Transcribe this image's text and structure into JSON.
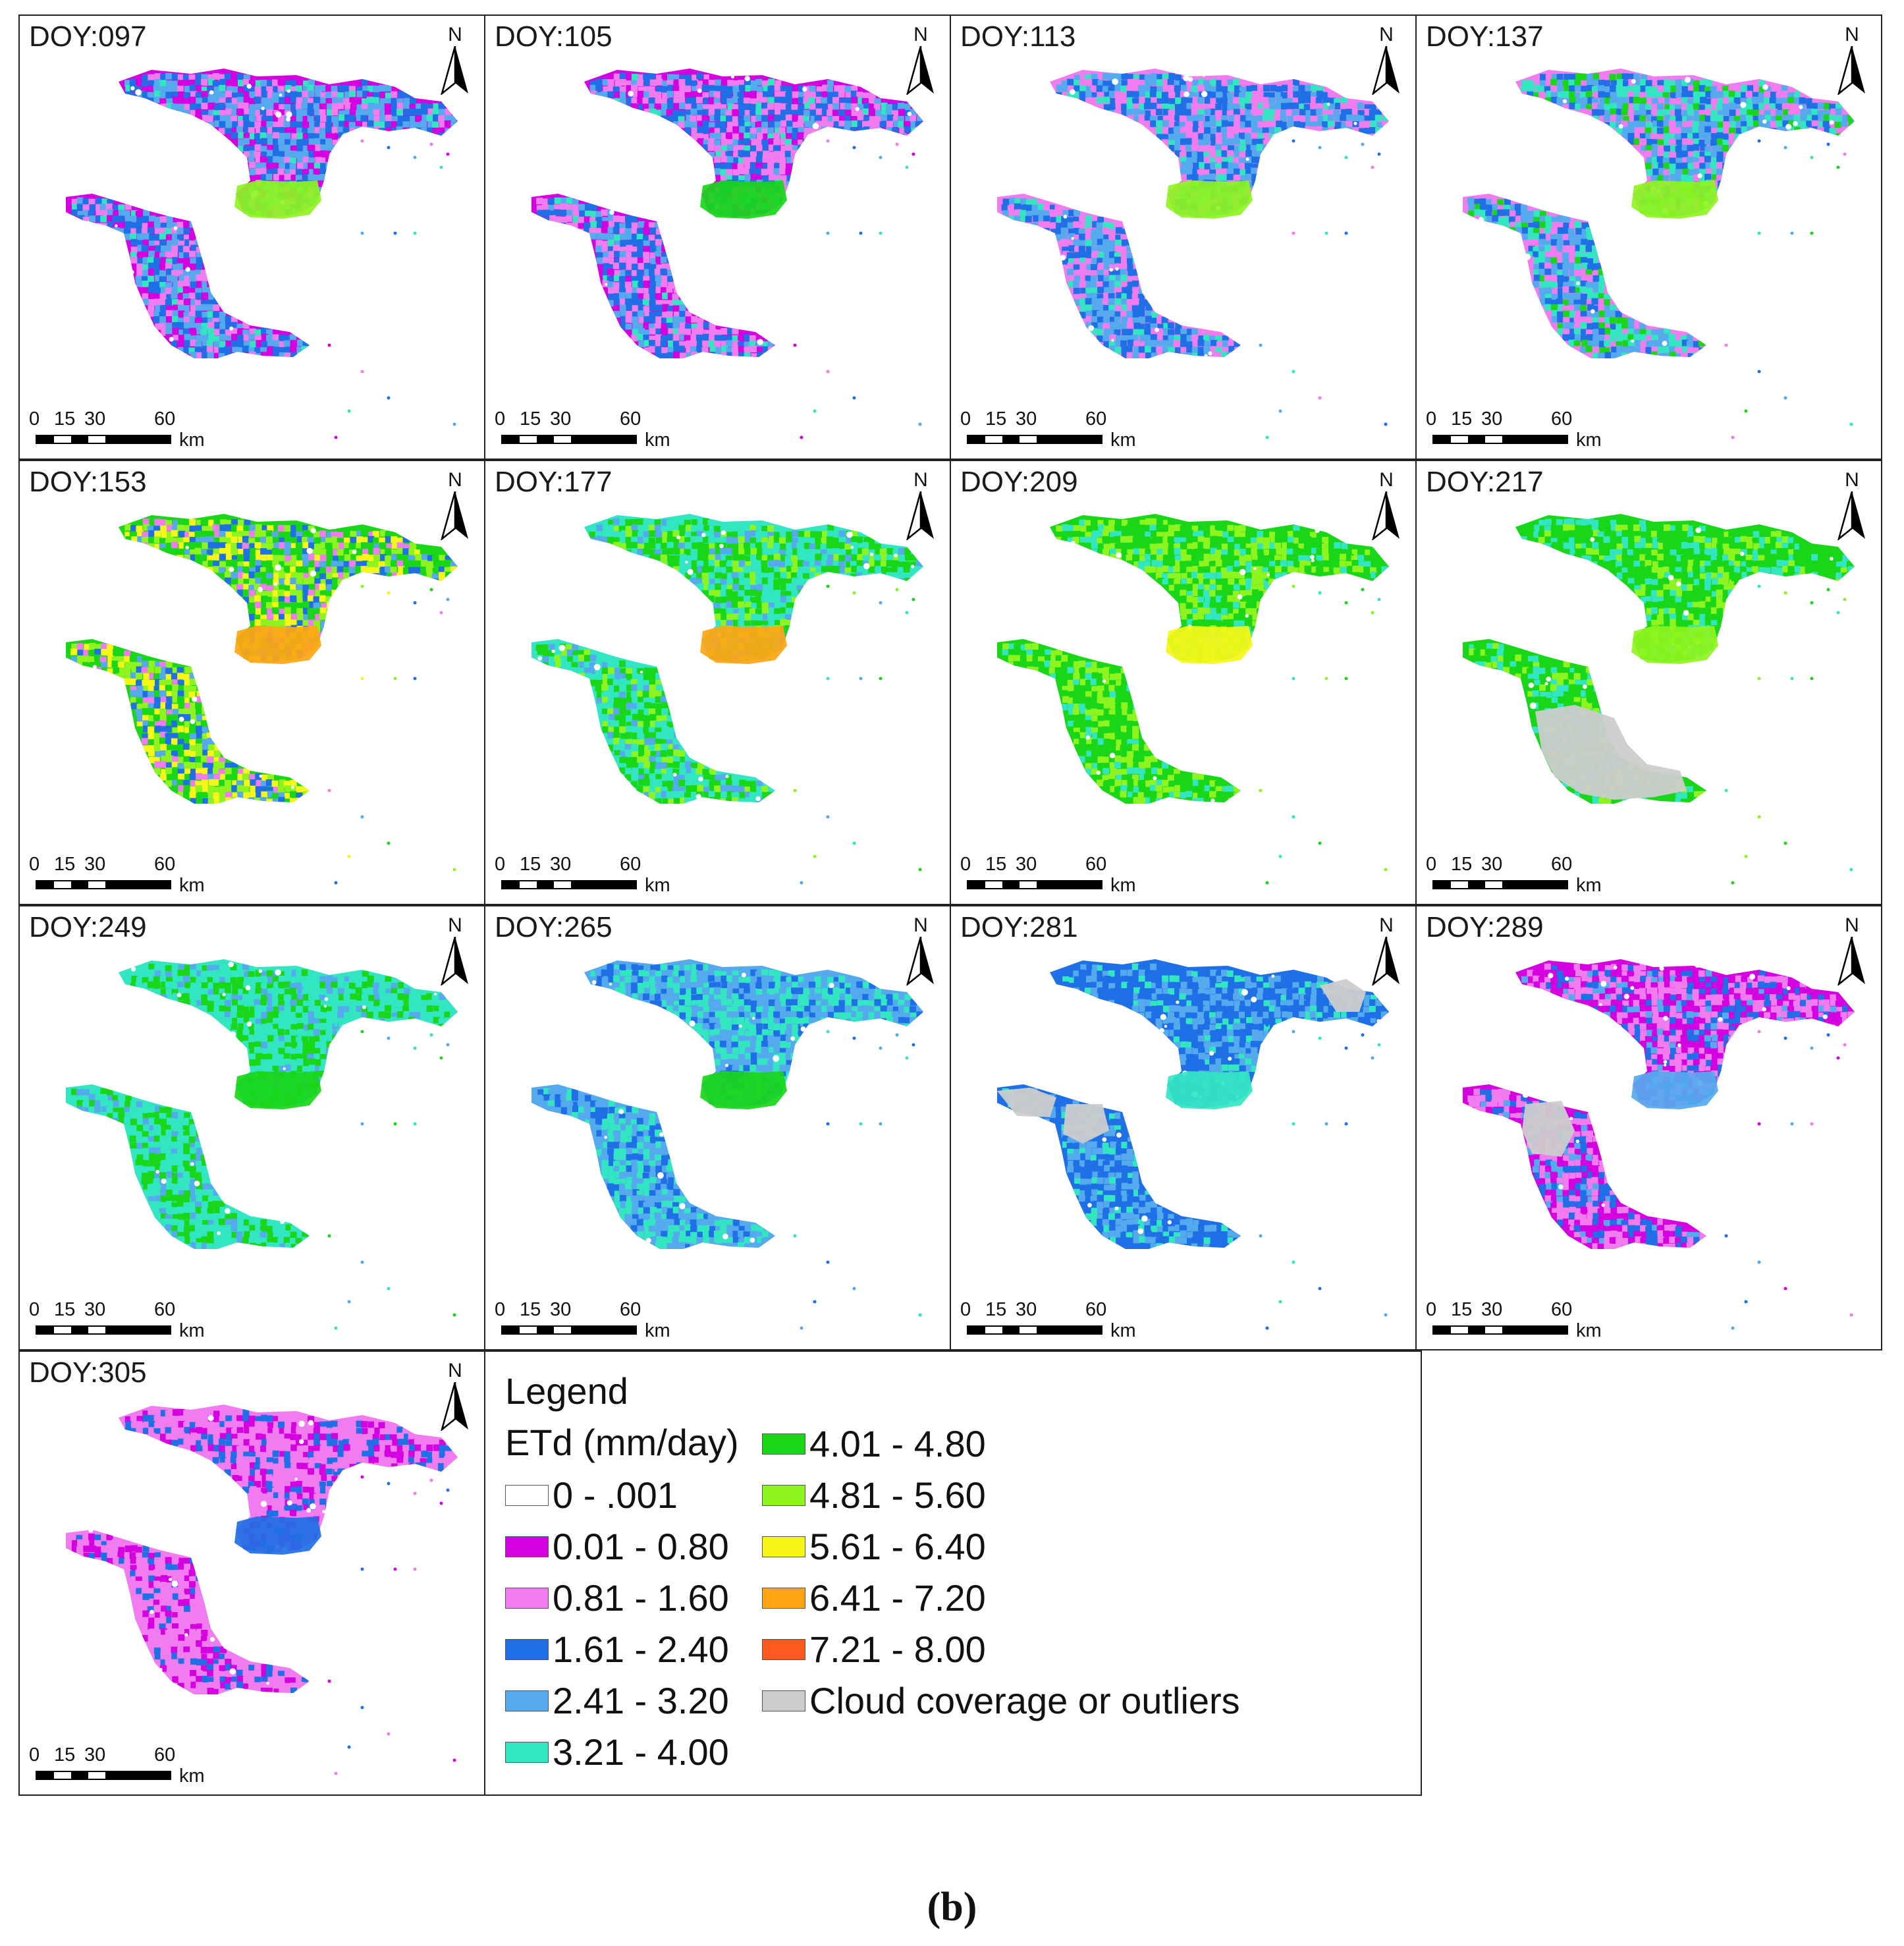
{
  "figure": {
    "caption": "(b)",
    "panels": [
      {
        "label": "DOY:097",
        "classes": [
          "c2",
          "c3",
          "c4",
          "c5",
          "c6"
        ],
        "weights": [
          4,
          5,
          8,
          8,
          2
        ],
        "hotspot": "c8",
        "cloud": "none"
      },
      {
        "label": "DOY:105",
        "classes": [
          "c2",
          "c3",
          "c4",
          "c5",
          "c6"
        ],
        "weights": [
          3,
          9,
          8,
          5,
          2
        ],
        "hotspot": "c7",
        "cloud": "none"
      },
      {
        "label": "DOY:113",
        "classes": [
          "c3",
          "c4",
          "c5",
          "c6"
        ],
        "weights": [
          6,
          8,
          8,
          3
        ],
        "hotspot": "c8",
        "cloud": "none"
      },
      {
        "label": "DOY:137",
        "classes": [
          "c3",
          "c4",
          "c5",
          "c6",
          "c7"
        ],
        "weights": [
          5,
          6,
          7,
          6,
          4
        ],
        "hotspot": "c8",
        "cloud": "none"
      },
      {
        "label": "DOY:153",
        "classes": [
          "c7",
          "c8",
          "c9",
          "c4",
          "c3",
          "c5"
        ],
        "weights": [
          5,
          6,
          4,
          3,
          2,
          2
        ],
        "hotspot": "c10",
        "cloud": "none"
      },
      {
        "label": "DOY:177",
        "classes": [
          "c6",
          "c7",
          "c8",
          "c5"
        ],
        "weights": [
          7,
          7,
          3,
          3
        ],
        "hotspot": "c10",
        "cloud": "none"
      },
      {
        "label": "DOY:209",
        "classes": [
          "c7",
          "c8",
          "c6"
        ],
        "weights": [
          9,
          6,
          3
        ],
        "hotspot": "c9",
        "cloud": "none"
      },
      {
        "label": "DOY:217",
        "classes": [
          "c7",
          "c6",
          "c8"
        ],
        "weights": [
          9,
          4,
          3
        ],
        "hotspot": "c8",
        "cloud": "south"
      },
      {
        "label": "DOY:249",
        "classes": [
          "c6",
          "c7",
          "c5"
        ],
        "weights": [
          9,
          5,
          3
        ],
        "hotspot": "c7",
        "cloud": "none"
      },
      {
        "label": "DOY:265",
        "classes": [
          "c5",
          "c6",
          "c4"
        ],
        "weights": [
          7,
          7,
          4
        ],
        "hotspot": "c7",
        "cloud": "none"
      },
      {
        "label": "DOY:281",
        "classes": [
          "c4",
          "c5",
          "c6"
        ],
        "weights": [
          8,
          5,
          2
        ],
        "hotspot": "c6",
        "cloud": "patches"
      },
      {
        "label": "DOY:289",
        "classes": [
          "c2",
          "c3",
          "c4",
          "c5"
        ],
        "weights": [
          7,
          7,
          4,
          2
        ],
        "hotspot": "c5",
        "cloud": "center"
      },
      {
        "label": "DOY:305",
        "classes": [
          "c3",
          "c2",
          "c4"
        ],
        "weights": [
          9,
          3,
          3
        ],
        "hotspot": "c4",
        "cloud": "none"
      }
    ],
    "north_label": "N",
    "scale": {
      "ticks": [
        "0",
        "15",
        "30",
        "60"
      ],
      "unit": "km"
    }
  },
  "legend": {
    "title": "Legend",
    "subtitle": "ETd (mm/day)",
    "items": [
      {
        "id": "c1",
        "label": "0 - .001",
        "color": "#ffffff"
      },
      {
        "id": "c2",
        "label": "0.01 - 0.80",
        "color": "#d400e0"
      },
      {
        "id": "c3",
        "label": "0.81 - 1.60",
        "color": "#f07cf0"
      },
      {
        "id": "c4",
        "label": "1.61 - 2.40",
        "color": "#1f6fe6"
      },
      {
        "id": "c5",
        "label": "2.41 - 3.20",
        "color": "#55aaee"
      },
      {
        "id": "c6",
        "label": "3.21 - 4.00",
        "color": "#33e6c2"
      },
      {
        "id": "c7",
        "label": "4.01 - 4.80",
        "color": "#19d619"
      },
      {
        "id": "c8",
        "label": "4.81 - 5.60",
        "color": "#8ef41f"
      },
      {
        "id": "c9",
        "label": "5.61 - 6.40",
        "color": "#f6f619"
      },
      {
        "id": "c10",
        "label": "6.41 - 7.20",
        "color": "#ffa515"
      },
      {
        "id": "c11",
        "label": "7.21 - 8.00",
        "color": "#ff5a1e"
      },
      {
        "id": "c12",
        "label": "Cloud coverage or outliers",
        "color": "#cccccc"
      }
    ]
  }
}
